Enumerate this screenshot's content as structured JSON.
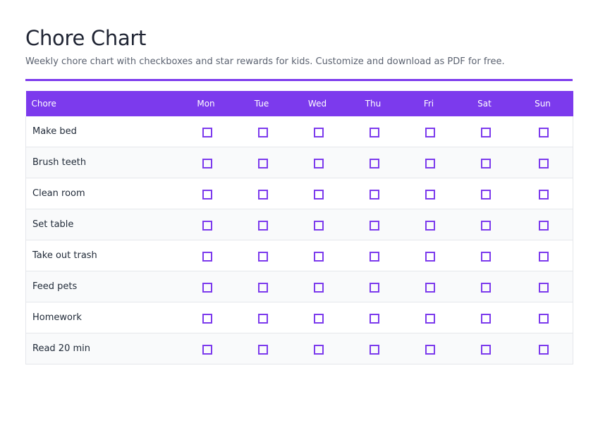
{
  "header": {
    "title": "Chore Chart",
    "subtitle": "Weekly chore chart with checkboxes and star rewards for kids. Customize and download as PDF for free."
  },
  "colors": {
    "accent": "#7c3aed",
    "row_stripe": "#f9fafb",
    "border": "#e5e7eb"
  },
  "table": {
    "chore_header": "Chore",
    "days": [
      "Mon",
      "Tue",
      "Wed",
      "Thu",
      "Fri",
      "Sat",
      "Sun"
    ],
    "chores": [
      "Make bed",
      "Brush teeth",
      "Clean room",
      "Set table",
      "Take out trash",
      "Feed pets",
      "Homework",
      "Read 20 min"
    ],
    "checkbox_icon": "empty-checkbox-icon",
    "checked": [
      [
        false,
        false,
        false,
        false,
        false,
        false,
        false
      ],
      [
        false,
        false,
        false,
        false,
        false,
        false,
        false
      ],
      [
        false,
        false,
        false,
        false,
        false,
        false,
        false
      ],
      [
        false,
        false,
        false,
        false,
        false,
        false,
        false
      ],
      [
        false,
        false,
        false,
        false,
        false,
        false,
        false
      ],
      [
        false,
        false,
        false,
        false,
        false,
        false,
        false
      ],
      [
        false,
        false,
        false,
        false,
        false,
        false,
        false
      ],
      [
        false,
        false,
        false,
        false,
        false,
        false,
        false
      ]
    ]
  }
}
